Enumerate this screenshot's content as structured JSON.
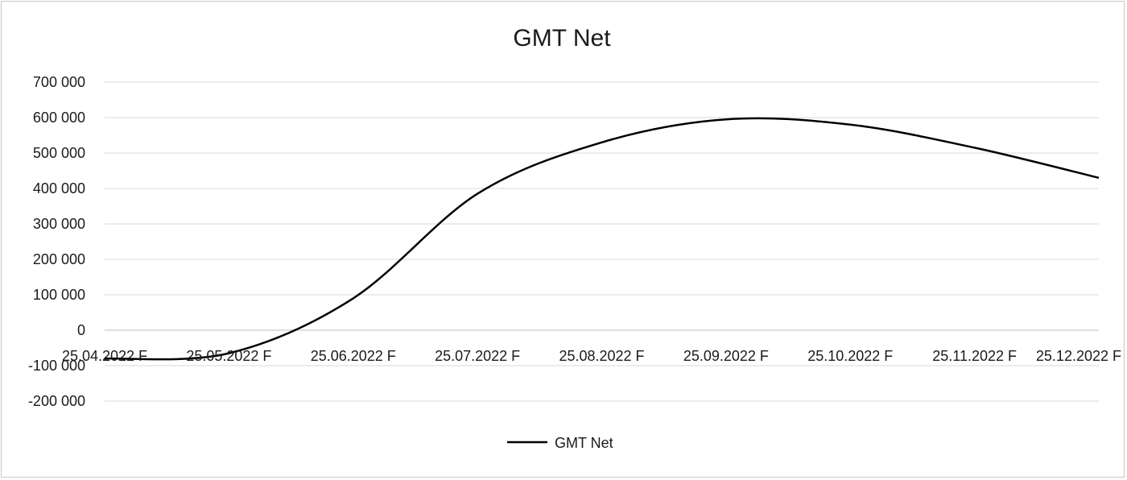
{
  "chart_data": {
    "type": "line",
    "title": "GMT Net",
    "xlabel": "",
    "ylabel": "",
    "ylim": [
      -200000,
      700000
    ],
    "y_ticks": [
      "-200 000",
      "-100 000",
      "0",
      "100 000",
      "200 000",
      "300 000",
      "400 000",
      "500 000",
      "600 000",
      "700 000"
    ],
    "y_tick_values": [
      -200000,
      -100000,
      0,
      100000,
      200000,
      300000,
      400000,
      500000,
      600000,
      700000
    ],
    "categories": [
      "25.04.2022 F",
      "25.05.2022 F",
      "25.06.2022 F",
      "25.07.2022 F",
      "25.08.2022 F",
      "25.09.2022 F",
      "25.10.2022 F",
      "25.11.2022 F",
      "25.12.2022 F"
    ],
    "grid": true,
    "legend_position": "bottom",
    "series": [
      {
        "name": "GMT Net",
        "color": "#000000",
        "values": [
          -80000,
          -65000,
          90000,
          385000,
          530000,
          595000,
          580000,
          515000,
          430000
        ]
      }
    ]
  }
}
